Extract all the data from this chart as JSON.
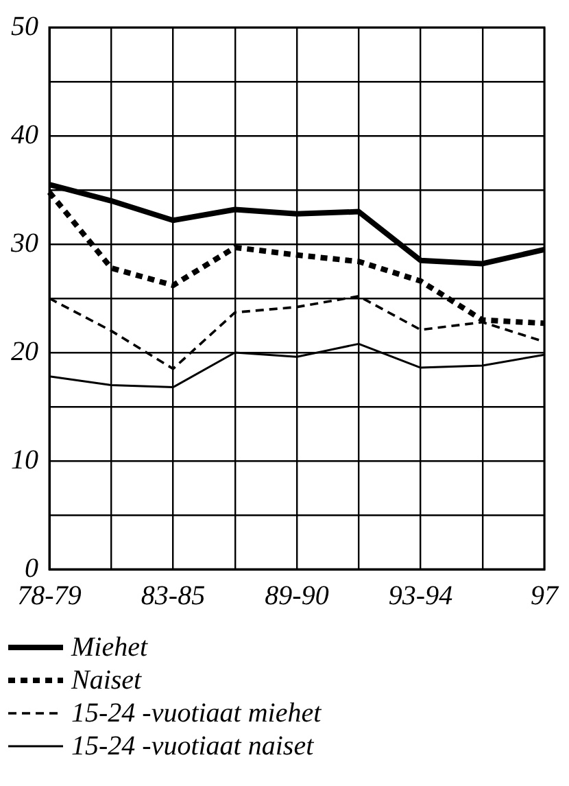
{
  "chart_data": {
    "type": "line",
    "categories": [
      "78-79",
      null,
      "83-85",
      null,
      "89-90",
      null,
      "93-94",
      null,
      "97"
    ],
    "series": [
      {
        "name": "Miehet",
        "color": "#000000",
        "line_style": "solid",
        "values": [
          35.5,
          34,
          32.2,
          33.2,
          32.8,
          33,
          28.5,
          28.2,
          29.5
        ]
      },
      {
        "name": "Naiset",
        "color": "#000000",
        "line_style": "dotted",
        "values": [
          34.8,
          27.8,
          26.2,
          29.7,
          29,
          28.4,
          26.6,
          23,
          22.7
        ]
      },
      {
        "name": "15-24 -vuotiaat miehet",
        "color": "#000000",
        "line_style": "dashed",
        "values": [
          25,
          22,
          18.5,
          23.7,
          24.2,
          25.2,
          22.1,
          22.8,
          21
        ]
      },
      {
        "name": "15-24 -vuotiaat naiset",
        "color": "#000000",
        "line_style": "solid",
        "values": [
          17.8,
          17,
          16.8,
          20,
          19.6,
          20.8,
          18.6,
          18.8,
          19.8
        ]
      }
    ],
    "ylim": [
      0,
      50
    ],
    "yticks": [
      0,
      {
        "value": 5,
        "label": null
      },
      10,
      {
        "value": 15,
        "label": null
      },
      20,
      {
        "value": 25,
        "label": null
      },
      30,
      {
        "value": 35,
        "label": null
      },
      40,
      {
        "value": 45,
        "label": null
      },
      50
    ],
    "grid": true,
    "legend": "bottom",
    "marker": "none"
  }
}
